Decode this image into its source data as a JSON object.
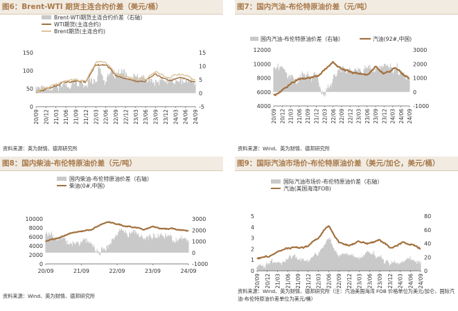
{
  "panels": [
    {
      "title": "图6：Brent-WTI 期货主连合约价差（美元/桶）",
      "source": "资料来源：英为财情、德邦研究所",
      "legend": [
        "Brent-WTI期货主连合约价差（右轴）",
        "WTI期货(主连合约)",
        "Brent期货(主连合约)"
      ]
    },
    {
      "title": "图7：国内汽油-布伦特原油价差（元/吨）",
      "source": "资料来源：Wind、英为财情、德邦研究所",
      "legend": [
        "国内汽油-布伦特原油价差（右轴）",
        "汽油(92#,中国)"
      ]
    },
    {
      "title": "图8：国内柴油-布伦特原油价差（元/吨）",
      "source": "资料来源：Wind、英为财情、德邦研究所",
      "legend": [
        "国内柴油-布伦特原油价差（右轴）",
        "柴油(0#,中国)"
      ]
    },
    {
      "title": "图9：国际汽油市场价-布伦特原油价差（美元/加仑，美元/桶）",
      "source": "资料来源：Wind、英为财情、德邦研究所（注：汽油美国海湾 FOB 价格单位为美元/加仑，国际汽油-布伦特原油价差单位为美元/桶）",
      "legend": [
        "国际汽油市场价-布伦特原油价差（右轴）",
        "汽油(美国海湾FOB)"
      ]
    }
  ],
  "chart_data": [
    {
      "type": "line",
      "title": "Brent-WTI 期货主连合约价差",
      "x_ticks": [
        "20/09",
        "20/12",
        "21/03",
        "21/06",
        "21/09",
        "21/12",
        "22/03",
        "22/06",
        "22/09",
        "22/12",
        "23/03",
        "23/06",
        "23/09",
        "23/12",
        "24/03",
        "24/06",
        "24/09"
      ],
      "xlim": [
        "2020-09",
        "2024-09"
      ],
      "ylim_left": [
        0,
        150
      ],
      "yticks_left": [
        "0",
        "50",
        "100",
        "150"
      ],
      "ylim_right": [
        -5,
        15
      ],
      "yticks_right": [
        "-5",
        "0",
        "5",
        "10",
        "15"
      ],
      "series": [
        {
          "name": "Brent-WTI期货主连合约价差（右轴）",
          "kind": "area",
          "axis": "right",
          "x": [
            "2020-09",
            "2021-01",
            "2021-06",
            "2021-12",
            "2022-03",
            "2022-04",
            "2022-06",
            "2022-10",
            "2023-01",
            "2023-06",
            "2023-10",
            "2024-01",
            "2024-06",
            "2024-09"
          ],
          "values": [
            2.5,
            3.0,
            3.0,
            3.5,
            6.0,
            10.0,
            5.0,
            7.0,
            5.5,
            4.5,
            4.0,
            4.5,
            4.0,
            3.5
          ]
        },
        {
          "name": "WTI期货(主连合约)",
          "kind": "line",
          "axis": "left",
          "x": [
            "2020-09",
            "2021-01",
            "2021-06",
            "2021-12",
            "2022-03",
            "2022-06",
            "2022-09",
            "2022-12",
            "2023-03",
            "2023-06",
            "2023-09",
            "2024-01",
            "2024-04",
            "2024-07",
            "2024-09"
          ],
          "values": [
            40,
            52,
            70,
            70,
            115,
            118,
            85,
            78,
            72,
            70,
            90,
            72,
            85,
            78,
            68
          ]
        },
        {
          "name": "Brent期货(主连合约)",
          "kind": "line",
          "axis": "left",
          "x": [
            "2020-09",
            "2021-01",
            "2021-06",
            "2021-12",
            "2022-03",
            "2022-06",
            "2022-09",
            "2022-12",
            "2023-03",
            "2023-06",
            "2023-09",
            "2024-01",
            "2024-04",
            "2024-07",
            "2024-09"
          ],
          "values": [
            42,
            55,
            73,
            74,
            125,
            122,
            90,
            84,
            78,
            75,
            94,
            78,
            90,
            82,
            72
          ]
        }
      ]
    },
    {
      "type": "line",
      "title": "国内汽油-布伦特原油价差",
      "x_ticks": [
        "20/09",
        "20/12",
        "21/03",
        "21/06",
        "21/09",
        "21/12",
        "22/03",
        "22/06",
        "22/09",
        "22/12",
        "23/03",
        "23/06",
        "23/09",
        "23/12",
        "24/03",
        "24/06",
        "24/09"
      ],
      "xlim": [
        "2020-09",
        "2024-09"
      ],
      "ylim_left": [
        4000,
        12000
      ],
      "yticks_left": [
        "4000",
        "6000",
        "8000",
        "10000",
        "12000"
      ],
      "ylim_right": [
        -1000,
        3000
      ],
      "yticks_right": [
        "-1000",
        "0",
        "1000",
        "2000",
        "3000"
      ],
      "series": [
        {
          "name": "国内汽油-布伦特原油价差（右轴）",
          "kind": "area",
          "axis": "right",
          "x": [
            "2020-09",
            "2021-01",
            "2021-06",
            "2021-12",
            "2022-03",
            "2022-06",
            "2022-09",
            "2022-12",
            "2023-06",
            "2023-12",
            "2024-06",
            "2024-09"
          ],
          "values": [
            1800,
            1500,
            1200,
            1300,
            -200,
            800,
            1800,
            1500,
            1700,
            1600,
            1300,
            900
          ]
        },
        {
          "name": "汽油(92#,中国)",
          "kind": "line",
          "axis": "left",
          "x": [
            "2020-09",
            "2020-12",
            "2021-06",
            "2021-12",
            "2022-03",
            "2022-06",
            "2022-09",
            "2022-12",
            "2023-03",
            "2023-06",
            "2023-09",
            "2023-12",
            "2024-04",
            "2024-09"
          ],
          "values": [
            5600,
            6200,
            7900,
            8200,
            9200,
            10200,
            9200,
            8800,
            8600,
            8500,
            9600,
            8700,
            9400,
            8000
          ]
        }
      ]
    },
    {
      "type": "line",
      "title": "国内柴油-布伦特原油价差",
      "x_ticks": [
        "20/09",
        "21/09",
        "22/09",
        "23/09",
        "24/09"
      ],
      "xlim": [
        "2020-09",
        "2024-09"
      ],
      "ylim_left": [
        0,
        10000
      ],
      "yticks_left": [
        "0",
        "2000",
        "4000",
        "6000",
        "8000",
        "10000"
      ],
      "ylim_right": [
        -1000,
        3000
      ],
      "yticks_right": [
        "-1000",
        "0",
        "1000",
        "2000",
        "3000"
      ],
      "series": [
        {
          "name": "国内柴油-布伦特原油价差（右轴）",
          "kind": "area",
          "axis": "right",
          "x": [
            "2020-09",
            "2021-01",
            "2021-06",
            "2021-12",
            "2022-03",
            "2022-06",
            "2022-09",
            "2022-12",
            "2023-06",
            "2023-12",
            "2024-06",
            "2024-09"
          ],
          "values": [
            1800,
            1300,
            1000,
            1200,
            -100,
            700,
            1900,
            1600,
            1400,
            1500,
            1300,
            1000
          ]
        },
        {
          "name": "柴油(0#,中国)",
          "kind": "line",
          "axis": "left",
          "x": [
            "2020-09",
            "2020-12",
            "2021-06",
            "2021-12",
            "2022-03",
            "2022-06",
            "2022-09",
            "2022-12",
            "2023-03",
            "2023-06",
            "2023-09",
            "2023-12",
            "2024-04",
            "2024-09"
          ],
          "values": [
            5000,
            5600,
            6900,
            7500,
            8500,
            9300,
            8900,
            8300,
            8000,
            7700,
            8300,
            7800,
            7800,
            7300
          ]
        }
      ]
    },
    {
      "type": "line",
      "title": "国际汽油市场价-布伦特原油价差",
      "x_ticks": [
        "20/09",
        "20/12",
        "21/03",
        "21/06",
        "21/09",
        "21/12",
        "22/03",
        "22/06",
        "22/09",
        "22/12",
        "23/03",
        "23/06",
        "23/09",
        "23/12",
        "24/03",
        "24/06",
        "24/09"
      ],
      "xlim": [
        "2020-09",
        "2024-09"
      ],
      "ylim_left": [
        0,
        5
      ],
      "yticks_left": [
        "0",
        "1",
        "2",
        "3",
        "4",
        "5"
      ],
      "ylim_right": [
        0,
        80
      ],
      "yticks_right": [
        "0",
        "20",
        "40",
        "60",
        "80"
      ],
      "series": [
        {
          "name": "国际汽油市场价-布伦特原油价差（右轴）",
          "kind": "area",
          "axis": "right",
          "x": [
            "2020-09",
            "2021-01",
            "2021-06",
            "2021-12",
            "2022-03",
            "2022-06",
            "2022-09",
            "2022-12",
            "2023-06",
            "2023-12",
            "2024-06",
            "2024-09"
          ],
          "values": [
            8,
            10,
            18,
            15,
            28,
            50,
            25,
            20,
            25,
            10,
            18,
            12
          ]
        },
        {
          "name": "汽油(美国海湾FOB)",
          "kind": "line",
          "axis": "left",
          "x": [
            "2020-09",
            "2020-12",
            "2021-06",
            "2021-12",
            "2022-03",
            "2022-06",
            "2022-09",
            "2022-12",
            "2023-03",
            "2023-06",
            "2023-09",
            "2023-12",
            "2024-04",
            "2024-09"
          ],
          "values": [
            1.1,
            1.3,
            2.1,
            2.2,
            3.0,
            4.2,
            2.6,
            2.3,
            2.6,
            2.5,
            2.8,
            2.1,
            2.7,
            2.0
          ]
        }
      ]
    }
  ]
}
